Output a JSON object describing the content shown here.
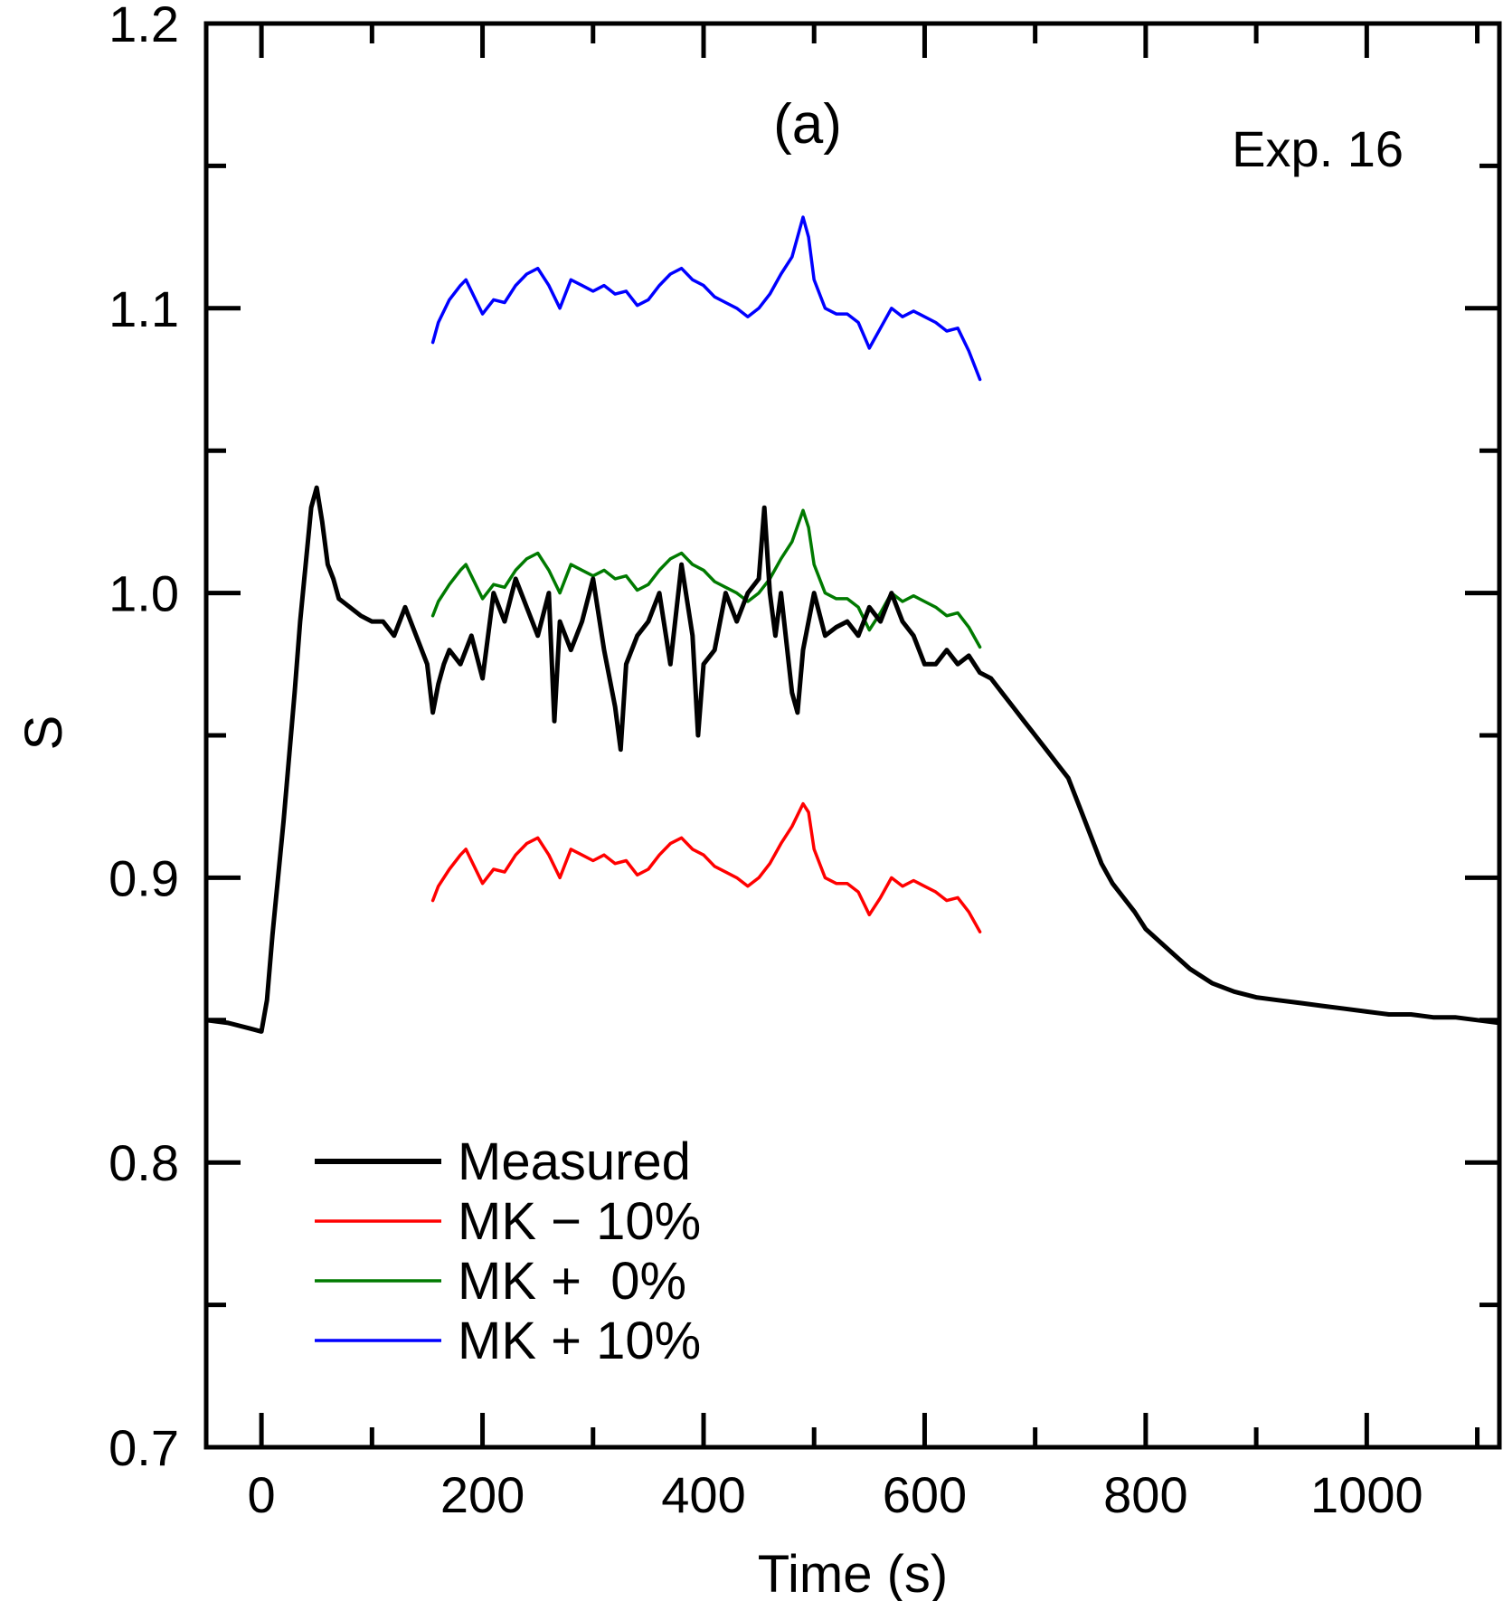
{
  "chart_data": {
    "type": "line",
    "panel_label": "(a)",
    "annotation": "Exp. 16",
    "xlabel": "Time (s)",
    "ylabel": "S",
    "xlim": [
      -50,
      1120
    ],
    "ylim": [
      0.7,
      1.2
    ],
    "x_ticks": [
      0,
      200,
      400,
      600,
      800,
      1000
    ],
    "x_tick_labels": [
      "0",
      "200",
      "400",
      "600",
      "800",
      "1000"
    ],
    "y_ticks": [
      0.7,
      0.8,
      0.9,
      1.0,
      1.1,
      1.2
    ],
    "y_tick_labels": [
      "0.7",
      "0.8",
      "0.9",
      "1.0",
      "1.1",
      "1.2"
    ],
    "grid": false,
    "legend_position": "bottom-left",
    "series": [
      {
        "name": "Measured",
        "color": "#000000",
        "x": [
          -50,
          -30,
          -10,
          0,
          5,
          10,
          20,
          30,
          35,
          40,
          45,
          50,
          55,
          60,
          65,
          70,
          80,
          90,
          100,
          110,
          120,
          130,
          140,
          150,
          155,
          160,
          165,
          170,
          180,
          190,
          200,
          210,
          220,
          230,
          240,
          250,
          260,
          265,
          270,
          280,
          290,
          300,
          310,
          320,
          325,
          330,
          340,
          350,
          360,
          370,
          380,
          390,
          395,
          400,
          410,
          420,
          430,
          440,
          450,
          455,
          460,
          465,
          470,
          480,
          485,
          490,
          495,
          500,
          510,
          520,
          530,
          540,
          550,
          560,
          570,
          580,
          590,
          600,
          610,
          620,
          630,
          640,
          650,
          660,
          670,
          680,
          690,
          700,
          710,
          720,
          730,
          740,
          750,
          760,
          770,
          780,
          790,
          800,
          820,
          840,
          860,
          880,
          900,
          920,
          940,
          960,
          980,
          1000,
          1020,
          1040,
          1060,
          1080,
          1100,
          1120
        ],
        "y": [
          0.85,
          0.849,
          0.847,
          0.846,
          0.857,
          0.88,
          0.92,
          0.965,
          0.99,
          1.01,
          1.03,
          1.037,
          1.025,
          1.01,
          1.005,
          0.998,
          0.995,
          0.992,
          0.99,
          0.99,
          0.985,
          0.995,
          0.985,
          0.975,
          0.958,
          0.968,
          0.975,
          0.98,
          0.975,
          0.985,
          0.97,
          1.0,
          0.99,
          1.005,
          0.995,
          0.985,
          1.0,
          0.955,
          0.99,
          0.98,
          0.99,
          1.005,
          0.98,
          0.96,
          0.945,
          0.975,
          0.985,
          0.99,
          1.0,
          0.975,
          1.01,
          0.985,
          0.95,
          0.975,
          0.98,
          1.0,
          0.99,
          1.0,
          1.005,
          1.03,
          1.0,
          0.985,
          1.0,
          0.965,
          0.958,
          0.98,
          0.99,
          1.0,
          0.985,
          0.988,
          0.99,
          0.985,
          0.995,
          0.99,
          1.0,
          0.99,
          0.985,
          0.975,
          0.975,
          0.98,
          0.975,
          0.978,
          0.972,
          0.97,
          0.965,
          0.96,
          0.955,
          0.95,
          0.945,
          0.94,
          0.935,
          0.925,
          0.915,
          0.905,
          0.898,
          0.893,
          0.888,
          0.882,
          0.875,
          0.868,
          0.863,
          0.86,
          0.858,
          0.857,
          0.856,
          0.855,
          0.854,
          0.853,
          0.852,
          0.852,
          0.851,
          0.851,
          0.85,
          0.849
        ]
      },
      {
        "name": "MK − 10%",
        "color": "#ff0000",
        "x": [
          155,
          160,
          170,
          180,
          185,
          190,
          200,
          210,
          220,
          230,
          240,
          250,
          260,
          270,
          280,
          290,
          300,
          310,
          320,
          330,
          340,
          350,
          360,
          370,
          380,
          390,
          400,
          410,
          420,
          430,
          440,
          450,
          460,
          470,
          480,
          490,
          495,
          500,
          510,
          520,
          530,
          540,
          550,
          560,
          570,
          580,
          590,
          600,
          610,
          620,
          630,
          640,
          650
        ],
        "y": [
          0.892,
          0.897,
          0.903,
          0.908,
          0.91,
          0.906,
          0.898,
          0.903,
          0.902,
          0.908,
          0.912,
          0.914,
          0.908,
          0.9,
          0.91,
          0.908,
          0.906,
          0.908,
          0.905,
          0.906,
          0.901,
          0.903,
          0.908,
          0.912,
          0.914,
          0.91,
          0.908,
          0.904,
          0.902,
          0.9,
          0.897,
          0.9,
          0.905,
          0.912,
          0.918,
          0.926,
          0.923,
          0.91,
          0.9,
          0.898,
          0.898,
          0.895,
          0.887,
          0.893,
          0.9,
          0.897,
          0.899,
          0.897,
          0.895,
          0.892,
          0.893,
          0.888,
          0.881
        ]
      },
      {
        "name": "MK +  0%",
        "color": "#007a00",
        "x": [
          155,
          160,
          170,
          180,
          185,
          190,
          200,
          210,
          220,
          230,
          240,
          250,
          260,
          270,
          280,
          290,
          300,
          310,
          320,
          330,
          340,
          350,
          360,
          370,
          380,
          390,
          400,
          410,
          420,
          430,
          440,
          450,
          460,
          470,
          480,
          490,
          495,
          500,
          510,
          520,
          530,
          540,
          550,
          560,
          570,
          580,
          590,
          600,
          610,
          620,
          630,
          640,
          650
        ],
        "y": [
          0.992,
          0.997,
          1.003,
          1.008,
          1.01,
          1.006,
          0.998,
          1.003,
          1.002,
          1.008,
          1.012,
          1.014,
          1.008,
          1.0,
          1.01,
          1.008,
          1.006,
          1.008,
          1.005,
          1.006,
          1.001,
          1.003,
          1.008,
          1.012,
          1.014,
          1.01,
          1.008,
          1.004,
          1.002,
          1.0,
          0.997,
          1.0,
          1.005,
          1.012,
          1.018,
          1.029,
          1.023,
          1.01,
          1.0,
          0.998,
          0.998,
          0.995,
          0.987,
          0.993,
          1.0,
          0.997,
          0.999,
          0.997,
          0.995,
          0.992,
          0.993,
          0.988,
          0.981
        ]
      },
      {
        "name": "MK + 10%",
        "color": "#0000ff",
        "x": [
          155,
          160,
          170,
          180,
          185,
          190,
          200,
          210,
          220,
          230,
          240,
          250,
          260,
          270,
          280,
          290,
          300,
          310,
          320,
          330,
          340,
          350,
          360,
          370,
          380,
          390,
          400,
          410,
          420,
          430,
          440,
          450,
          460,
          470,
          480,
          490,
          495,
          500,
          510,
          520,
          530,
          540,
          550,
          560,
          570,
          580,
          590,
          600,
          610,
          620,
          630,
          640,
          650
        ],
        "y": [
          1.088,
          1.095,
          1.103,
          1.108,
          1.11,
          1.106,
          1.098,
          1.103,
          1.102,
          1.108,
          1.112,
          1.114,
          1.108,
          1.1,
          1.11,
          1.108,
          1.106,
          1.108,
          1.105,
          1.106,
          1.101,
          1.103,
          1.108,
          1.112,
          1.114,
          1.11,
          1.108,
          1.104,
          1.102,
          1.1,
          1.097,
          1.1,
          1.105,
          1.112,
          1.118,
          1.132,
          1.125,
          1.11,
          1.1,
          1.098,
          1.098,
          1.095,
          1.086,
          1.093,
          1.1,
          1.097,
          1.099,
          1.097,
          1.095,
          1.092,
          1.093,
          1.085,
          1.075
        ]
      }
    ]
  }
}
